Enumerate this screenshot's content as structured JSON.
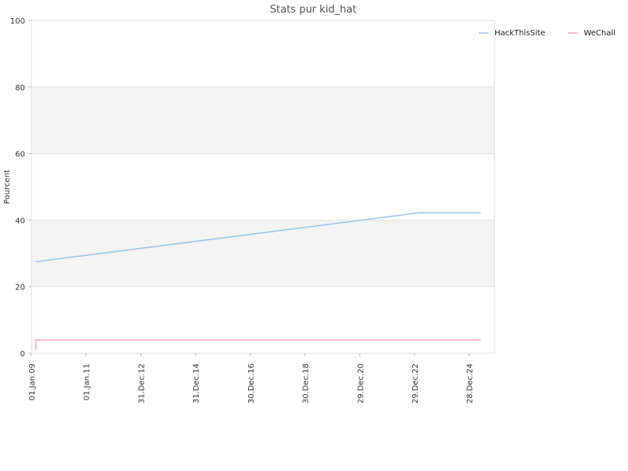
{
  "chart_data": {
    "type": "line",
    "title": "Stats pur kid_hat",
    "xlabel": "",
    "ylabel": "Pourcent",
    "ylim": [
      0,
      100
    ],
    "yticks": [
      0,
      20,
      40,
      60,
      80,
      100
    ],
    "x_tick_labels": [
      "01.Jan.09",
      "01.Jan.11",
      "31.Dec.12",
      "31.Dec.14",
      "30.Dec.16",
      "30.Dec.18",
      "29.Dec.20",
      "29.Dec.22",
      "28.Dec.24"
    ],
    "x_tick_dates": [
      "2009-01-01",
      "2011-01-01",
      "2012-12-31",
      "2014-12-31",
      "2016-12-30",
      "2018-12-30",
      "2020-12-29",
      "2022-12-29",
      "2024-12-28"
    ],
    "xlim": [
      "2009-01-01",
      "2025-12-01"
    ],
    "grid": true,
    "alternating_bands": true,
    "legend_position": "top-right",
    "series": [
      {
        "name": "HackThisSite",
        "color": "#99c2ee",
        "points": [
          {
            "x": "2009-03-01",
            "y": 27.5
          },
          {
            "x": "2023-03-01",
            "y": 42.2
          },
          {
            "x": "2025-06-01",
            "y": 42.2
          }
        ]
      },
      {
        "name": "WeChall",
        "color": "#f2a5c6",
        "points": [
          {
            "x": "2009-03-01",
            "y": 1.0
          },
          {
            "x": "2009-03-01",
            "y": 4.0
          },
          {
            "x": "2025-06-01",
            "y": 4.0
          }
        ]
      }
    ]
  }
}
